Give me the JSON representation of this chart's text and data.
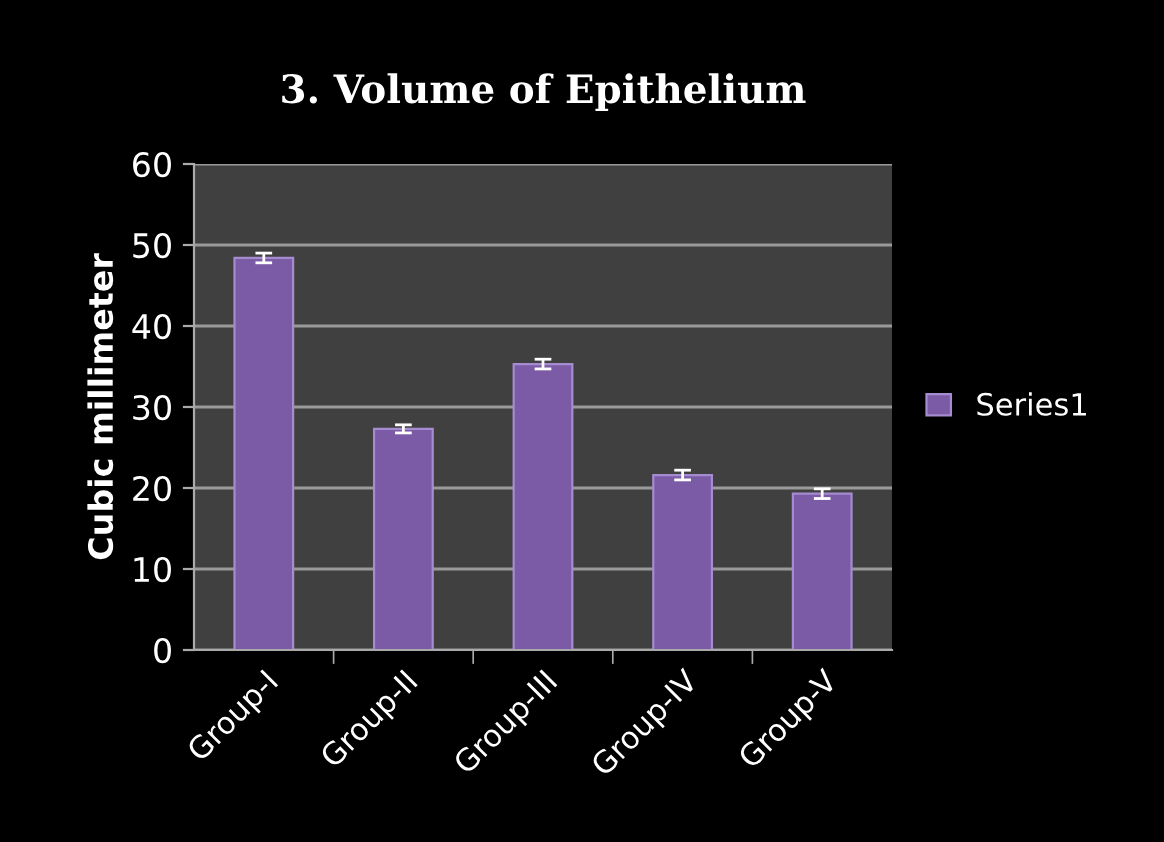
{
  "chart_data": {
    "type": "bar",
    "title": "3. Volume of Epithelium",
    "ylabel": "Cubic millimeter",
    "categories": [
      "Group-I",
      "Group-II",
      "Group-III",
      "Group-IV",
      "Group-V"
    ],
    "series": [
      {
        "name": "Series1",
        "color": "#7b5aa6",
        "values": [
          48.4,
          27.3,
          35.3,
          21.6,
          19.3
        ],
        "errors": [
          0.6,
          0.5,
          0.6,
          0.6,
          0.6
        ]
      }
    ],
    "ylim": [
      0,
      60
    ],
    "yticks": [
      0,
      10,
      20,
      30,
      40,
      50,
      60
    ],
    "grid": "y",
    "legend": "right"
  }
}
